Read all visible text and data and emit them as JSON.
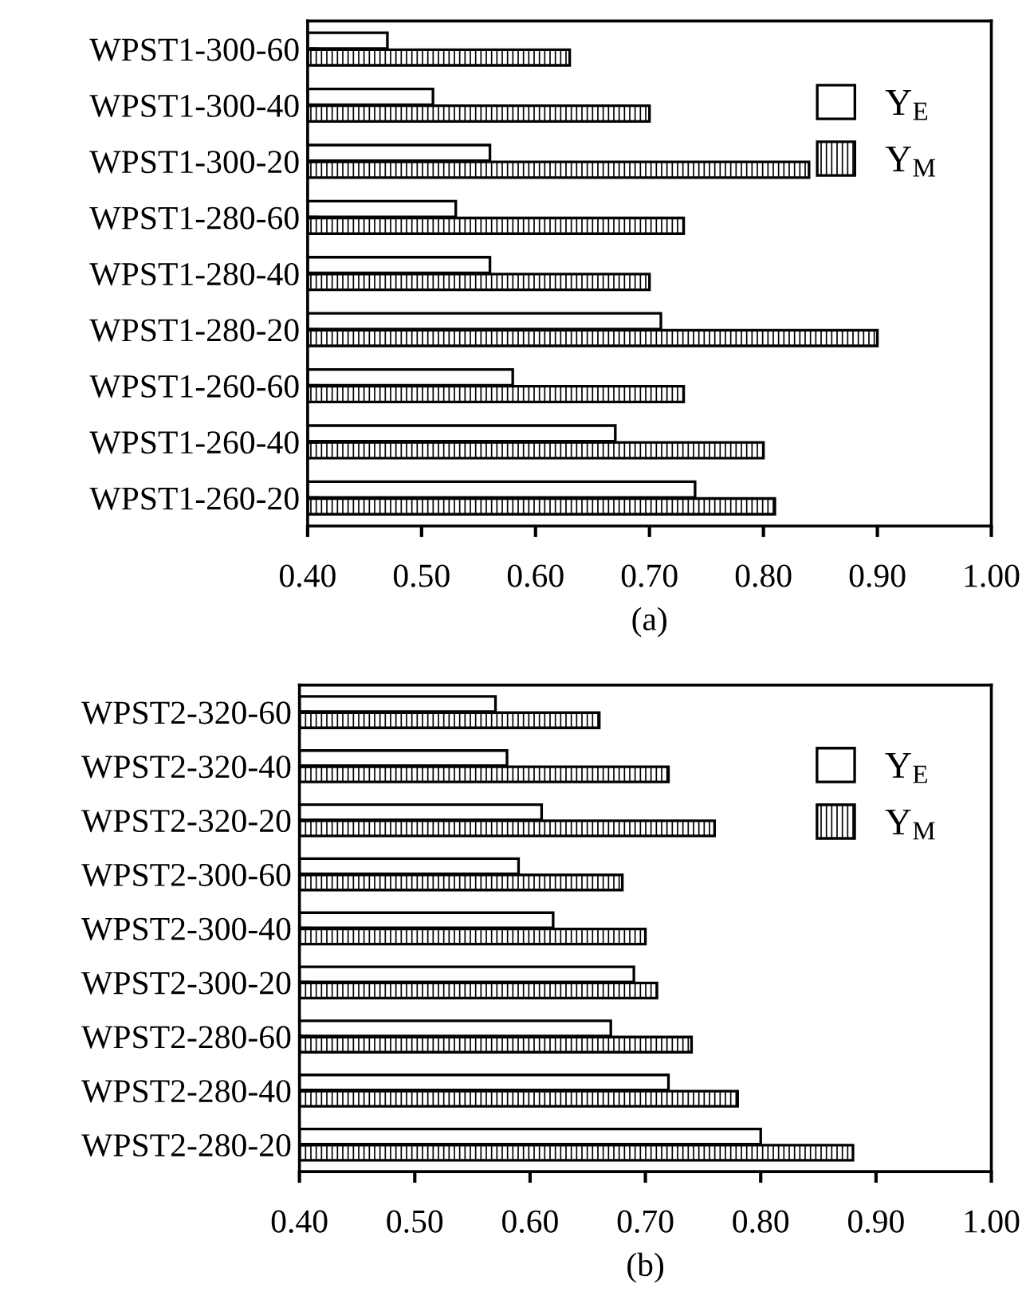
{
  "chart_data": [
    {
      "type": "bar",
      "orientation": "horizontal",
      "xlabel": "(a)",
      "categories": [
        "WPST1-300-60",
        "WPST1-300-40",
        "WPST1-300-20",
        "WPST1-280-60",
        "WPST1-280-40",
        "WPST1-280-20",
        "WPST1-260-60",
        "WPST1-260-40",
        "WPST1-260-20"
      ],
      "series": [
        {
          "name": "Y$_{E}$",
          "color": "#ffffff",
          "values": [
            0.47,
            0.51,
            0.56,
            0.53,
            0.56,
            0.71,
            0.58,
            0.67,
            0.74
          ]
        },
        {
          "name": "Y$_{M}$",
          "color": "#000000",
          "values": [
            0.63,
            0.7,
            0.84,
            0.73,
            0.7,
            0.9,
            0.73,
            0.8,
            0.81
          ]
        }
      ],
      "xlim": [
        0.4,
        1.0
      ],
      "xticks": [
        {
          "value": 0.4,
          "label": "0.40"
        },
        {
          "value": 0.5,
          "label": "0.50"
        },
        {
          "value": 0.6,
          "label": "0.60"
        },
        {
          "value": 0.7,
          "label": "0.70"
        },
        {
          "value": 0.8,
          "label": "0.80"
        },
        {
          "value": 0.9,
          "label": "0.90"
        },
        {
          "value": 1.0,
          "label": "1.00"
        }
      ],
      "grid": false,
      "legend": "top right"
    },
    {
      "type": "bar",
      "orientation": "horizontal",
      "xlabel": "(b)",
      "categories": [
        "WPST2-320-60",
        "WPST2-320-40",
        "WPST2-320-20",
        "WPST2-300-60",
        "WPST2-300-40",
        "WPST2-300-20",
        "WPST2-280-60",
        "WPST2-280-40",
        "WPST2-280-20"
      ],
      "series": [
        {
          "name": "Y$_{E}$",
          "color": "#ffffff",
          "values": [
            0.57,
            0.58,
            0.61,
            0.59,
            0.62,
            0.69,
            0.67,
            0.72,
            0.8
          ]
        },
        {
          "name": "Y$_{M}$",
          "color": "#000000",
          "values": [
            0.66,
            0.72,
            0.76,
            0.68,
            0.7,
            0.71,
            0.74,
            0.78,
            0.88
          ]
        }
      ],
      "xlim": [
        0.4,
        1.0
      ],
      "xticks": [
        {
          "value": 0.4,
          "label": "0.40"
        },
        {
          "value": 0.5,
          "label": "0.50"
        },
        {
          "value": 0.6,
          "label": "0.60"
        },
        {
          "value": 0.7,
          "label": "0.70"
        },
        {
          "value": 0.8,
          "label": "0.80"
        },
        {
          "value": 0.9,
          "label": "0.90"
        },
        {
          "value": 1.0,
          "label": "1.00"
        }
      ],
      "grid": false,
      "legend": "top right"
    }
  ]
}
